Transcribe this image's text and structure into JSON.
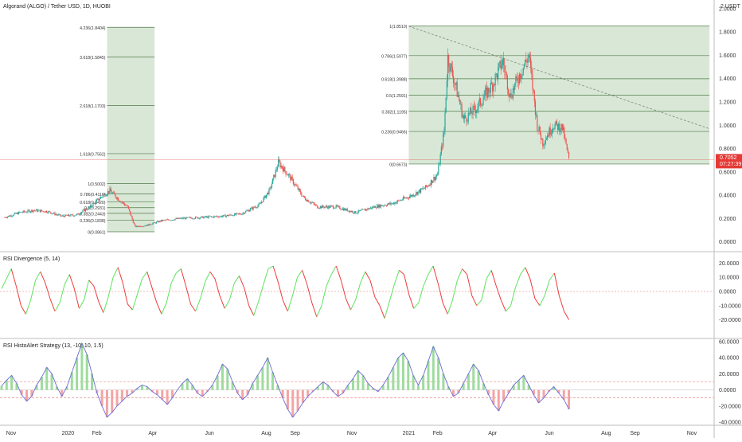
{
  "header": {
    "symbol_title": "Algorand (ALGO) / Tether USD, 1D, HUOBI"
  },
  "colors": {
    "background": "#ffffff",
    "fib_zone": "#d2e4cf",
    "fib_line": "#4f7a4a",
    "candle_up": "#26a69a",
    "candle_down": "#ef5350",
    "rsi_up": "#5ee35e",
    "rsi_down": "#ee3b3b",
    "histo_line": "#6b6bd8",
    "histo_pos_fill": "#9edc9e",
    "histo_neg_fill": "#f4a4a4",
    "threshold": "#e57373",
    "price_tag": "#e53935"
  },
  "chart_data": [
    {
      "type": "candlestick",
      "title": "Algorand (ALGO) / Tether USD, 1D, HUOBI",
      "currency_label": "2 USDT",
      "y_ticks": [
        "2.0000",
        "1.8000",
        "1.6000",
        "1.4000",
        "1.2000",
        "1.0000",
        "0.8000",
        "0.6000",
        "0.4000",
        "0.2000",
        "0.0000"
      ],
      "ylim": [
        -0.03,
        2.02
      ],
      "x_ticks": [
        "Nov",
        "2020",
        "Feb",
        "Apr",
        "Jun",
        "Aug",
        "Sep",
        "Nov",
        "2021",
        "Feb",
        "Apr",
        "Jun",
        "Aug",
        "Sep",
        "Nov"
      ],
      "series_close": [
        {
          "date": "2019-10-25",
          "value": 0.21
        },
        {
          "date": "2019-11-10",
          "value": 0.25
        },
        {
          "date": "2019-11-25",
          "value": 0.27
        },
        {
          "date": "2019-12-10",
          "value": 0.26
        },
        {
          "date": "2019-12-25",
          "value": 0.22
        },
        {
          "date": "2020-01-10",
          "value": 0.23
        },
        {
          "date": "2020-01-25",
          "value": 0.3
        },
        {
          "date": "2020-02-05",
          "value": 0.38
        },
        {
          "date": "2020-02-15",
          "value": 0.44
        },
        {
          "date": "2020-02-25",
          "value": 0.36
        },
        {
          "date": "2020-03-05",
          "value": 0.3
        },
        {
          "date": "2020-03-13",
          "value": 0.13
        },
        {
          "date": "2020-03-25",
          "value": 0.14
        },
        {
          "date": "2020-04-10",
          "value": 0.18
        },
        {
          "date": "2020-05-01",
          "value": 0.2
        },
        {
          "date": "2020-05-25",
          "value": 0.21
        },
        {
          "date": "2020-06-15",
          "value": 0.22
        },
        {
          "date": "2020-07-05",
          "value": 0.24
        },
        {
          "date": "2020-07-25",
          "value": 0.32
        },
        {
          "date": "2020-08-05",
          "value": 0.45
        },
        {
          "date": "2020-08-14",
          "value": 0.68
        },
        {
          "date": "2020-08-25",
          "value": 0.57
        },
        {
          "date": "2020-09-10",
          "value": 0.38
        },
        {
          "date": "2020-09-25",
          "value": 0.3
        },
        {
          "date": "2020-10-15",
          "value": 0.3
        },
        {
          "date": "2020-11-05",
          "value": 0.25
        },
        {
          "date": "2020-11-25",
          "value": 0.3
        },
        {
          "date": "2020-12-15",
          "value": 0.33
        },
        {
          "date": "2021-01-05",
          "value": 0.4
        },
        {
          "date": "2021-01-20",
          "value": 0.47
        },
        {
          "date": "2021-02-01",
          "value": 0.58
        },
        {
          "date": "2021-02-08",
          "value": 0.95
        },
        {
          "date": "2021-02-12",
          "value": 1.58
        },
        {
          "date": "2021-02-20",
          "value": 1.35
        },
        {
          "date": "2021-03-01",
          "value": 1.05
        },
        {
          "date": "2021-03-15",
          "value": 1.15
        },
        {
          "date": "2021-04-01",
          "value": 1.35
        },
        {
          "date": "2021-04-12",
          "value": 1.55
        },
        {
          "date": "2021-04-20",
          "value": 1.25
        },
        {
          "date": "2021-05-01",
          "value": 1.45
        },
        {
          "date": "2021-05-10",
          "value": 1.6
        },
        {
          "date": "2021-05-19",
          "value": 1.0
        },
        {
          "date": "2021-05-25",
          "value": 0.85
        },
        {
          "date": "2021-06-05",
          "value": 1.0
        },
        {
          "date": "2021-06-15",
          "value": 0.98
        },
        {
          "date": "2021-06-22",
          "value": 0.7052
        }
      ],
      "fib_2020": {
        "range": [
          "2020-02-12",
          "2020-04-03"
        ],
        "levels": [
          {
            "label": "4.236(1.8404)",
            "value": 1.8404
          },
          {
            "label": "3.618(1.5845)",
            "value": 1.5845
          },
          {
            "label": "2.618(1.1703)",
            "value": 1.1703
          },
          {
            "label": "1.618(0.7562)",
            "value": 0.7562
          },
          {
            "label": "1(0.5002)",
            "value": 0.5002
          },
          {
            "label": "0.786(0.4116)",
            "value": 0.4116
          },
          {
            "label": "0.618(0.3420)",
            "value": 0.342
          },
          {
            "label": "0.5(0.2931)",
            "value": 0.2931
          },
          {
            "label": "0.382(0.2443)",
            "value": 0.2443
          },
          {
            "label": "0.236(0.1838)",
            "value": 0.1838
          },
          {
            "label": "0(0.0861)",
            "value": 0.0861
          }
        ]
      },
      "fib_2021": {
        "range": [
          "2021-01-01",
          "2021-11-20"
        ],
        "levels": [
          {
            "label": "1(1.8510)",
            "value": 1.851
          },
          {
            "label": "0.786(1.5977)",
            "value": 1.5977
          },
          {
            "label": "0.618(1.3988)",
            "value": 1.3988
          },
          {
            "label": "0.5(1.2591)",
            "value": 1.2591
          },
          {
            "label": "0.382(1.1195)",
            "value": 1.1195
          },
          {
            "label": "0.236(0.9466)",
            "value": 0.9466
          },
          {
            "label": "0(0.6673)",
            "value": 0.6673
          }
        ]
      },
      "trendline": {
        "from": {
          "date": "2021-01-01",
          "value": 1.85
        },
        "to": {
          "date": "2021-11-20",
          "value": 0.97
        }
      },
      "last_price": {
        "value": 0.7052,
        "label": "0.7052",
        "countdown": "07:27:39"
      }
    },
    {
      "type": "line",
      "title": "RSI Divergence (5, 14)",
      "y_ticks": [
        "20.0000",
        "10.0000",
        "0.0000",
        "-10.0000",
        "-20.0000"
      ],
      "ylim": [
        -27,
        27
      ],
      "zero_line": 0,
      "series": [
        {
          "values": [
            2,
            9,
            16,
            4,
            -10,
            -16,
            -6,
            8,
            14,
            6,
            -5,
            -14,
            -8,
            5,
            12,
            2,
            -12,
            -6,
            8,
            4,
            -7,
            -15,
            -4,
            10,
            17,
            6,
            -9,
            -13,
            -2,
            9,
            14,
            3,
            -8,
            -16,
            -8,
            6,
            13,
            16,
            4,
            -9,
            -14,
            -5,
            7,
            14,
            9,
            -3,
            -12,
            -6,
            6,
            11,
            3,
            -10,
            -17,
            -7,
            5,
            16,
            18,
            7,
            -6,
            -14,
            -3,
            10,
            15,
            5,
            -8,
            -18,
            -10,
            4,
            12,
            18,
            8,
            -5,
            -13,
            -6,
            6,
            14,
            8,
            -4,
            -10,
            -19,
            -7,
            5,
            15,
            12,
            -2,
            -12,
            -8,
            4,
            12,
            18,
            6,
            -8,
            -16,
            -6,
            8,
            16,
            12,
            -3,
            -10,
            -6,
            9,
            15,
            4,
            -6,
            -14,
            -10,
            3,
            12,
            17,
            9,
            -5,
            -10,
            -3,
            8,
            13,
            -3,
            -14,
            -20
          ]
        }
      ]
    },
    {
      "type": "area",
      "title": "RSI HistoAlert Strategy (13, -10, 10, 1.5)",
      "y_ticks": [
        "60.0000",
        "40.0000",
        "20.0000",
        "0.0000",
        "-20.0000",
        "-40.0000"
      ],
      "ylim": [
        -42,
        62
      ],
      "thresholds": [
        10,
        -10
      ],
      "series": [
        {
          "values": [
            5,
            12,
            18,
            8,
            -6,
            -14,
            -8,
            6,
            16,
            28,
            20,
            4,
            -8,
            4,
            22,
            40,
            58,
            44,
            20,
            -4,
            -20,
            -34,
            -28,
            -20,
            -14,
            -8,
            -4,
            2,
            6,
            4,
            -2,
            -6,
            -12,
            -18,
            -10,
            0,
            8,
            14,
            6,
            -4,
            -8,
            -2,
            6,
            18,
            32,
            26,
            10,
            -4,
            -12,
            -6,
            8,
            18,
            28,
            40,
            22,
            6,
            -10,
            -24,
            -34,
            -26,
            -16,
            -8,
            -2,
            4,
            10,
            6,
            -2,
            -8,
            -4,
            6,
            14,
            24,
            18,
            8,
            2,
            -2,
            6,
            16,
            28,
            40,
            46,
            36,
            18,
            6,
            18,
            36,
            54,
            40,
            20,
            4,
            -8,
            -4,
            8,
            20,
            32,
            24,
            8,
            -6,
            -18,
            -26,
            -14,
            -4,
            6,
            12,
            18,
            6,
            -6,
            -16,
            -10,
            -2,
            4,
            -4,
            -12,
            -24
          ]
        }
      ]
    }
  ]
}
